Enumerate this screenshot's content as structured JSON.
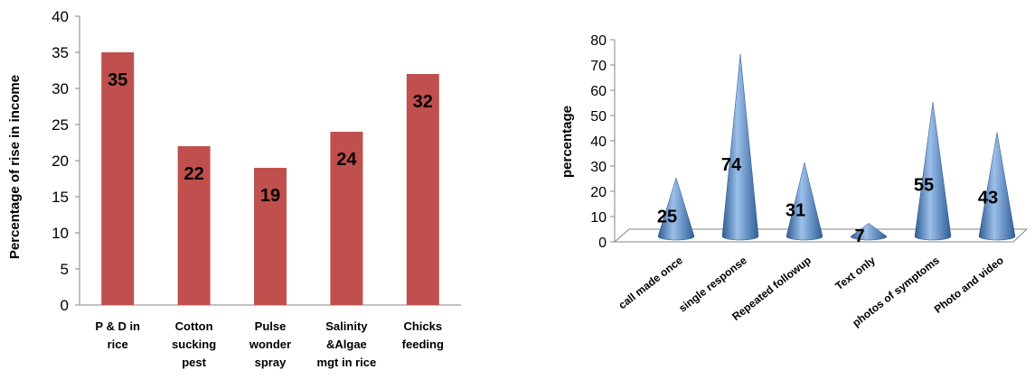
{
  "chart_data": [
    {
      "type": "bar",
      "title": "",
      "xlabel": "",
      "ylabel": "Percentage of rise in income",
      "ylim": [
        0,
        40
      ],
      "yticks": [
        0,
        5,
        10,
        15,
        20,
        25,
        30,
        35,
        40
      ],
      "categories": [
        [
          "P & D in",
          "rice"
        ],
        [
          "Cotton",
          "sucking",
          "pest"
        ],
        [
          "Pulse",
          "wonder",
          "spray"
        ],
        [
          "Salinity",
          "&Algae",
          "mgt in rice"
        ],
        [
          "Chicks",
          "feeding"
        ]
      ],
      "values": [
        35,
        22,
        19,
        24,
        32
      ],
      "data_labels": [
        "35",
        "22",
        "19",
        "24",
        "32"
      ],
      "bar_color": "#c0504d",
      "grid": false,
      "legend": "none"
    },
    {
      "type": "bar",
      "style": "3d-cone",
      "title": "",
      "xlabel": "",
      "ylabel": "percentage",
      "ylim": [
        0,
        80
      ],
      "yticks": [
        0,
        10,
        20,
        30,
        40,
        50,
        60,
        70,
        80
      ],
      "categories": [
        "call made once",
        "single response",
        "Repeated followup",
        "Text only",
        "photos of symptoms",
        "Photo and video"
      ],
      "values": [
        25,
        74,
        31,
        7,
        55,
        43
      ],
      "data_labels": [
        "25",
        "74",
        "31",
        "7",
        "55",
        "43"
      ],
      "cone_color": "#4f81bd",
      "grid": false,
      "legend": "none"
    }
  ]
}
